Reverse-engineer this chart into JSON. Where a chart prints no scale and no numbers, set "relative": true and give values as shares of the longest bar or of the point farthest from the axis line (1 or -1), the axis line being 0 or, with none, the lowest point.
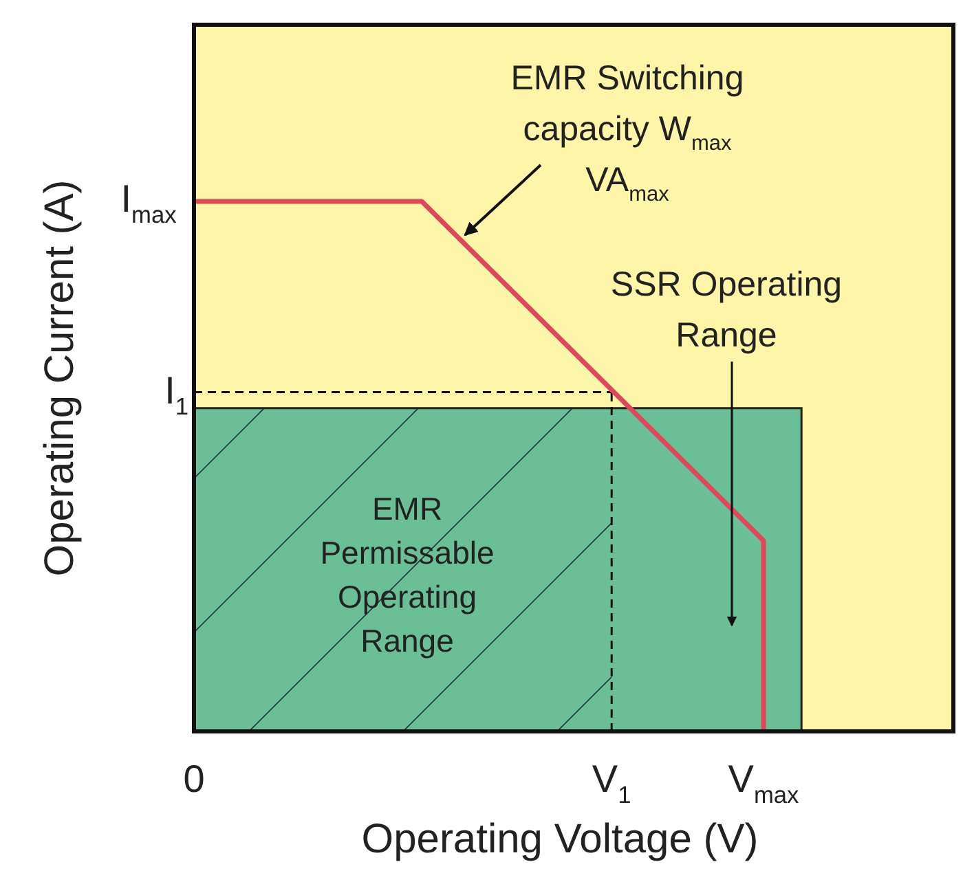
{
  "chart_data": {
    "type": "line",
    "xlabel": "Operating Voltage (V)",
    "ylabel": "Operating Current (A)",
    "relative": true,
    "xlim": [
      0,
      1
    ],
    "xticks": [
      {
        "value": 0,
        "label": "0"
      },
      {
        "value": 0.55,
        "label": "V$_{1}$"
      },
      {
        "value": 0.75,
        "label": "V$_{max}$"
      }
    ],
    "series": [
      {
        "type": "area",
        "color": "#6bbf96",
        "x": [
          0,
          0.8
        ],
        "values": [
          0.61,
          0.61
        ]
      },
      {
        "type": "line",
        "color": "#e0475a",
        "x": [
          0,
          0.3,
          0.75,
          0.75
        ],
        "values": [
          1,
          1,
          0.36,
          0
        ]
      }
    ],
    "ref_lines": [
      {
        "axis": "y",
        "value": 0.64,
        "label": "I$_{1}$",
        "line_style": "dashed"
      },
      {
        "axis": "x",
        "value": 0.55,
        "line_style": "dashed"
      }
    ],
    "annotations": [
      "EMR Switching\ncapacity W$_{max}$\nVA$_{max}$",
      "SSR Operating\nRange",
      "EMR\nPermissable\nOperating\nRange",
      "I$_{max}$"
    ]
  }
}
